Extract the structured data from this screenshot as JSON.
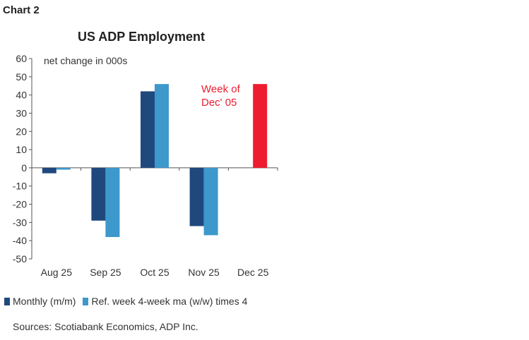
{
  "chart_label": "Chart 2",
  "chart_data": {
    "type": "bar",
    "title": "US ADP Employment",
    "ylabel": "net change in 000s",
    "ylim": [
      -50,
      60
    ],
    "yticks": [
      60,
      50,
      40,
      30,
      20,
      10,
      0,
      -10,
      -20,
      -30,
      -40,
      -50
    ],
    "categories": [
      "Aug 25",
      "Sep 25",
      "Oct 25",
      "Nov 25",
      "Dec 25"
    ],
    "series": [
      {
        "name": "Monthly (m/m)",
        "color": "#1f497d",
        "values": [
          -3,
          -29,
          42,
          -32,
          null
        ]
      },
      {
        "name": "Ref. week 4-week ma (w/w) times 4",
        "color": "#3d98cc",
        "values": [
          -1,
          -38,
          46,
          -37,
          46
        ],
        "highlight": {
          "index": 4,
          "color": "#ed1c2e"
        }
      }
    ],
    "annotation": {
      "lines": [
        "Week of",
        "Dec' 05"
      ],
      "color": "#ed1c2e"
    },
    "grid": false,
    "legend_position": "bottom"
  },
  "source": "Sources: Scotiabank Economics, ADP Inc."
}
